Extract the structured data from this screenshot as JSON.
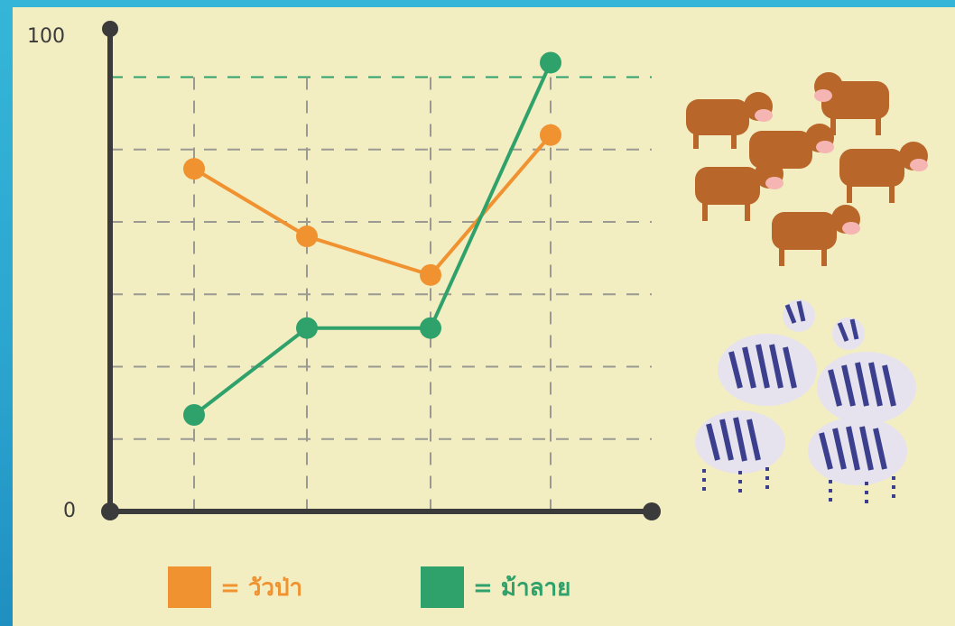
{
  "chart_data": {
    "type": "line",
    "title": "",
    "xlabel": "",
    "ylabel": "",
    "ylim": [
      0,
      100
    ],
    "y_tick_labels": [
      "0",
      "100"
    ],
    "x": [
      1,
      2,
      3,
      4
    ],
    "reference_line": 90,
    "grid": true,
    "legend_position": "bottom",
    "series": [
      {
        "name": "วัวป่า",
        "color": "#f0922f",
        "values": [
          71,
          57,
          49,
          78
        ]
      },
      {
        "name": "ม้าลาย",
        "color": "#2fa16a",
        "values": [
          20,
          38,
          38,
          93
        ]
      }
    ]
  },
  "legend": {
    "cow_label": "= วัวป่า",
    "zebra_label": "= ม้าลาย"
  },
  "illustrations": {
    "cow_icon": "cow-herd-icon",
    "zebra_icon": "zebra-herd-icon"
  }
}
